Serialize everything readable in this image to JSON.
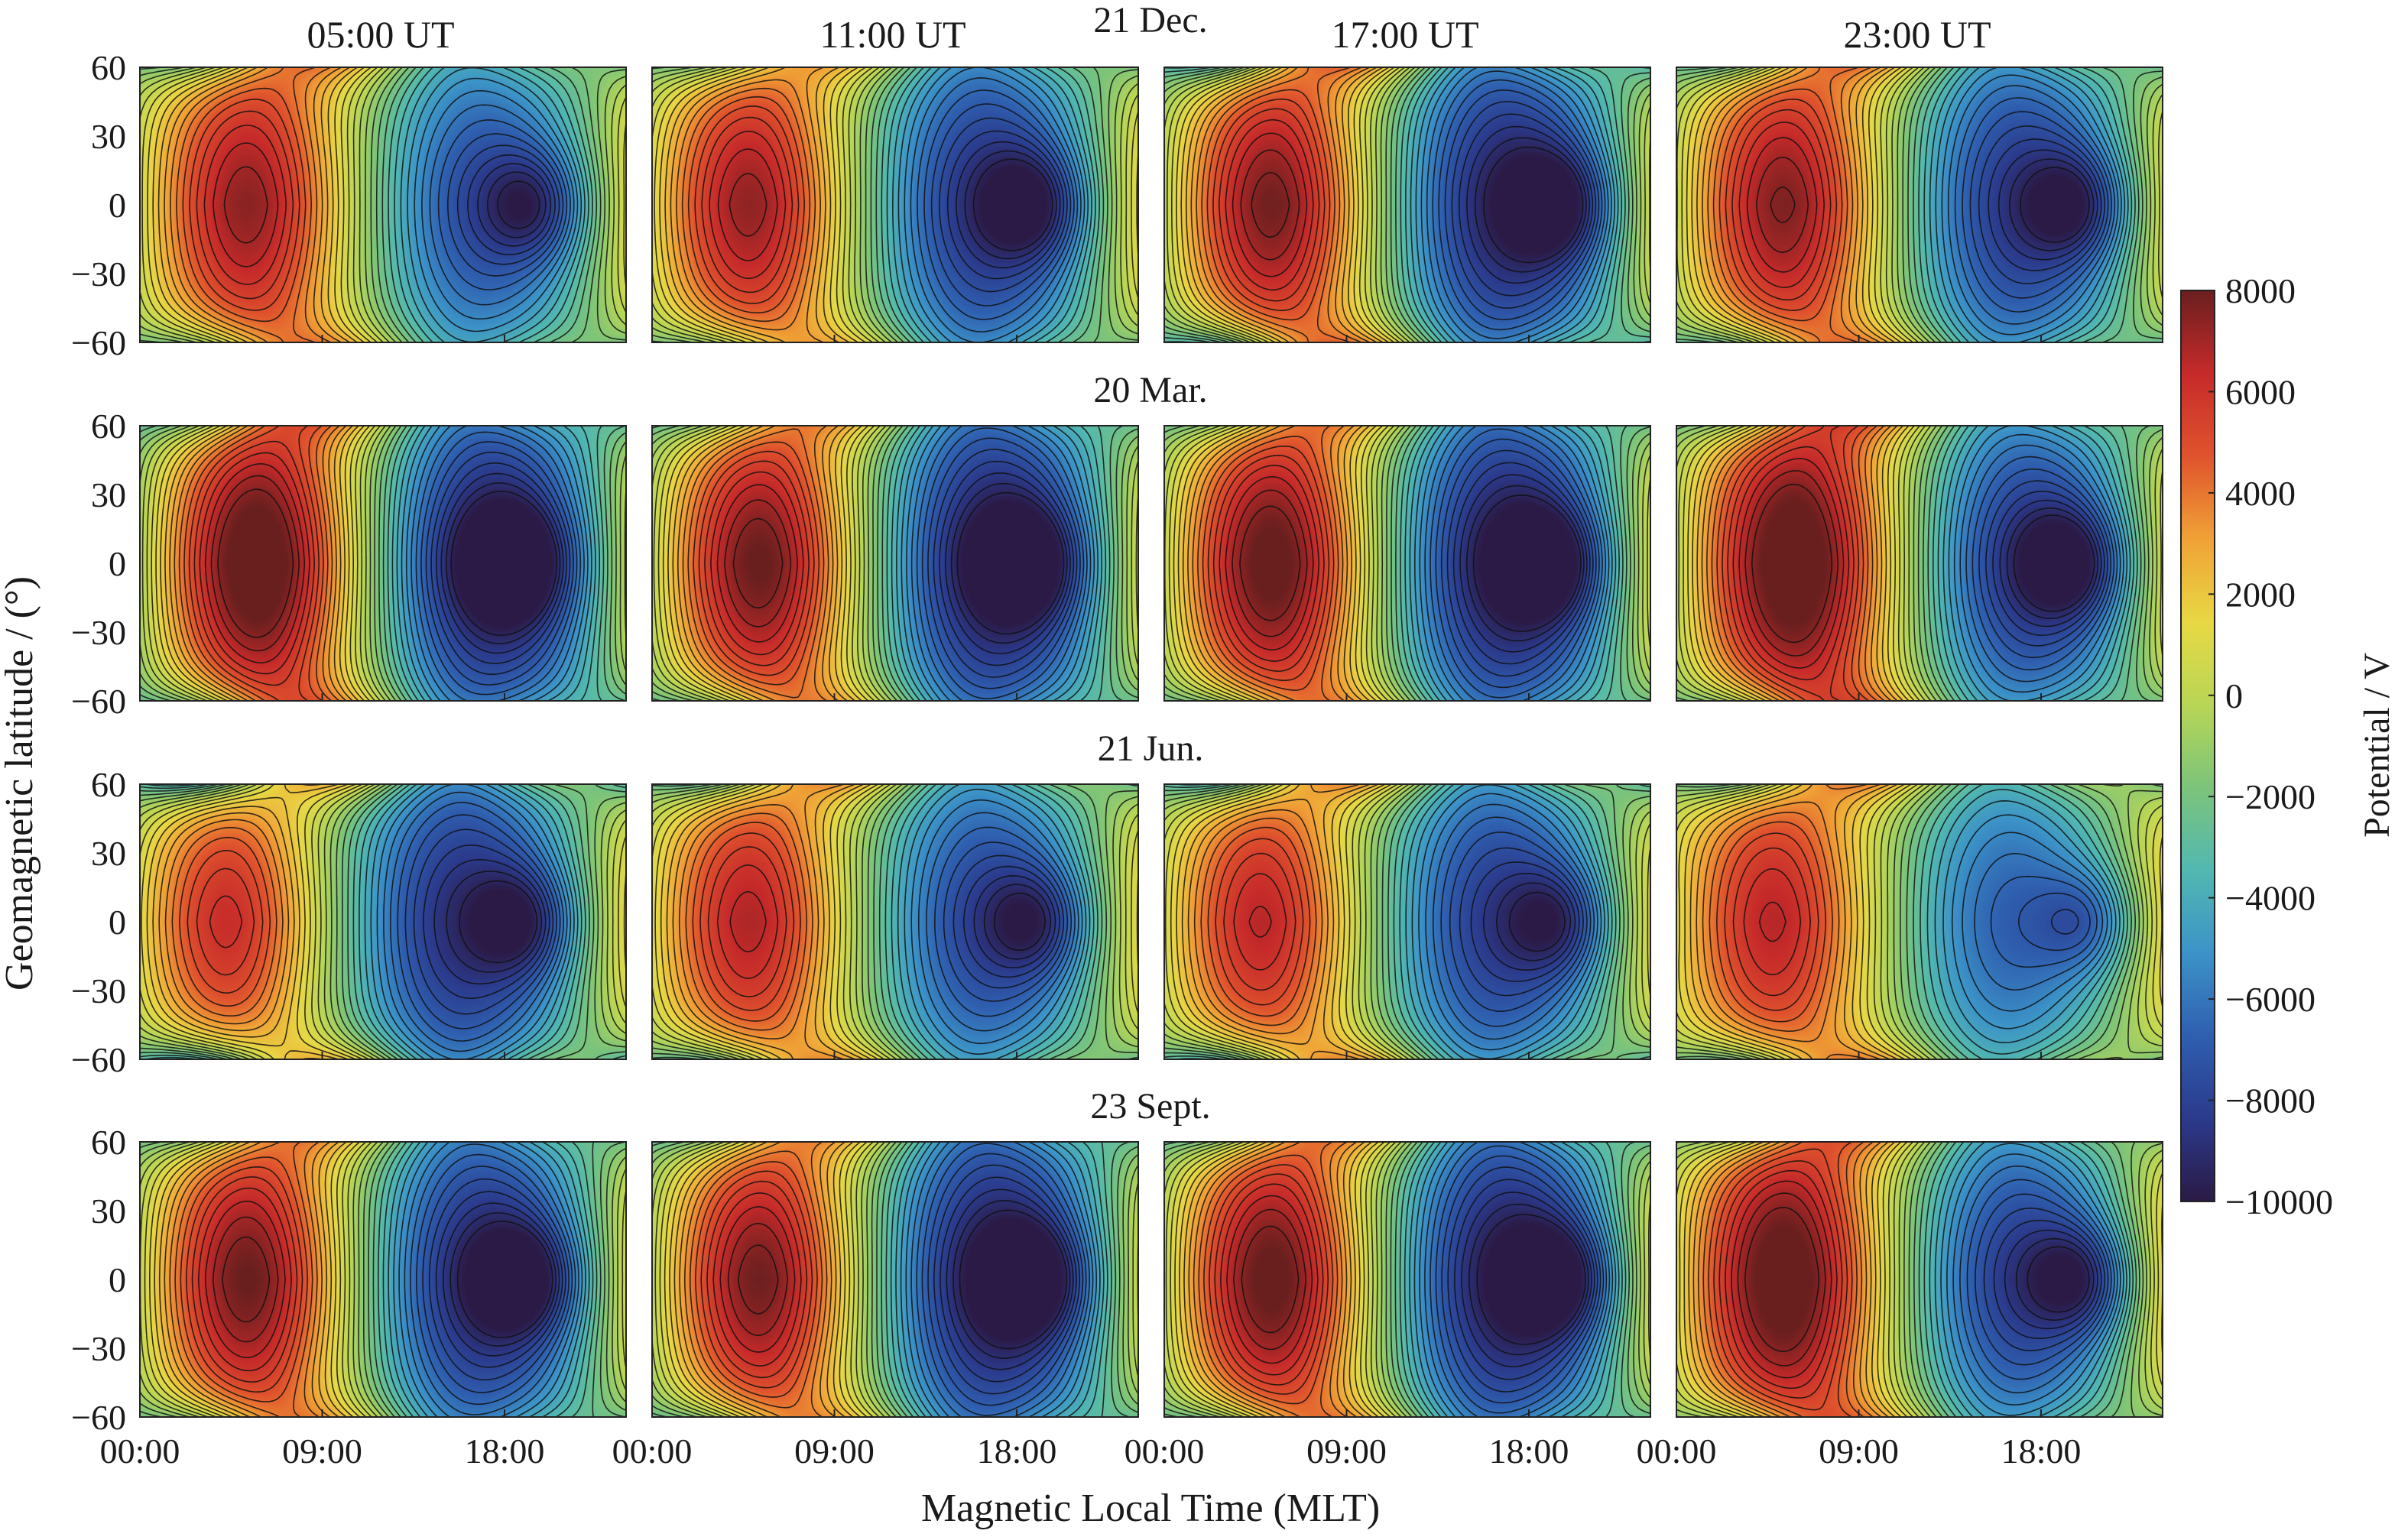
{
  "chart_data": {
    "type": "heatmap",
    "subtype": "contour-filled",
    "columns": [
      "05:00 UT",
      "11:00 UT",
      "17:00 UT",
      "23:00 UT"
    ],
    "rows": [
      "21 Dec.",
      "20 Mar.",
      "21 Jun.",
      "23 Sept."
    ],
    "xlabel": "Magnetic Local Time (MLT)",
    "ylabel": "Geomagnetic latitude / (°)",
    "x_ticks": [
      "00:00",
      "09:00",
      "18:00"
    ],
    "x_tick_hours": [
      0,
      9,
      18
    ],
    "xlim_hours": [
      0,
      24
    ],
    "y_ticks": [
      60,
      30,
      0,
      -30,
      -60
    ],
    "y_tick_labels": [
      "60",
      "30",
      "0",
      "−30",
      "−60"
    ],
    "ylim": [
      -60,
      60
    ],
    "colorbar": {
      "title": "Potential / V",
      "min": -10000,
      "max": 8000,
      "ticks": [
        8000,
        6000,
        4000,
        2000,
        0,
        -2000,
        -4000,
        -6000,
        -8000,
        -10000
      ],
      "tick_labels": [
        "8000",
        "6000",
        "4000",
        "2000",
        "0",
        "−2000",
        "−4000",
        "−6000",
        "−8000",
        "−10000"
      ],
      "colormap": [
        "#2b1a45",
        "#2b3a8c",
        "#2f5fb0",
        "#3c93c8",
        "#52b8b0",
        "#7cc47a",
        "#b8d656",
        "#e8d844",
        "#f0a236",
        "#e0532d",
        "#c62a2a",
        "#6a1f1f"
      ]
    },
    "panels": [
      {
        "row": "21 Dec.",
        "column": "05:00 UT",
        "max_center_mlt": 5.0,
        "min_center_mlt": 19.5,
        "min_value": -7500,
        "max_value": 5800,
        "high_lat_amp": 0.55
      },
      {
        "row": "21 Dec.",
        "column": "11:00 UT",
        "max_center_mlt": 4.5,
        "min_center_mlt": 18.8,
        "min_value": -8600,
        "max_value": 5600,
        "high_lat_amp": 0.55
      },
      {
        "row": "21 Dec.",
        "column": "17:00 UT",
        "max_center_mlt": 5.0,
        "min_center_mlt": 19.5,
        "min_value": -9400,
        "max_value": 6000,
        "high_lat_amp": 0.75
      },
      {
        "row": "21 Dec.",
        "column": "23:00 UT",
        "max_center_mlt": 5.0,
        "min_center_mlt": 19.8,
        "min_value": -8400,
        "max_value": 5900,
        "high_lat_amp": 0.65
      },
      {
        "row": "20 Mar.",
        "column": "05:00 UT",
        "max_center_mlt": 5.5,
        "min_center_mlt": 18.5,
        "min_value": -9800,
        "max_value": 7000,
        "high_lat_amp": 0.5
      },
      {
        "row": "20 Mar.",
        "column": "11:00 UT",
        "max_center_mlt": 5.0,
        "min_center_mlt": 18.5,
        "min_value": -9800,
        "max_value": 6200,
        "high_lat_amp": 0.5
      },
      {
        "row": "20 Mar.",
        "column": "17:00 UT",
        "max_center_mlt": 5.0,
        "min_center_mlt": 19.0,
        "min_value": -9800,
        "max_value": 6500,
        "high_lat_amp": 0.5
      },
      {
        "row": "20 Mar.",
        "column": "23:00 UT",
        "max_center_mlt": 5.5,
        "min_center_mlt": 19.5,
        "min_value": -8500,
        "max_value": 7200,
        "high_lat_amp": 0.5
      },
      {
        "row": "21 Jun.",
        "column": "05:00 UT",
        "max_center_mlt": 4.0,
        "min_center_mlt": 19.0,
        "min_value": -8800,
        "max_value": 4600,
        "high_lat_amp": 0.85
      },
      {
        "row": "21 Jun.",
        "column": "11:00 UT",
        "max_center_mlt": 4.5,
        "min_center_mlt": 19.0,
        "min_value": -7800,
        "max_value": 5200,
        "high_lat_amp": 0.7
      },
      {
        "row": "21 Jun.",
        "column": "17:00 UT",
        "max_center_mlt": 4.5,
        "min_center_mlt": 19.5,
        "min_value": -8200,
        "max_value": 5000,
        "high_lat_amp": 0.8
      },
      {
        "row": "21 Jun.",
        "column": "23:00 UT",
        "max_center_mlt": 4.5,
        "min_center_mlt": 20.5,
        "min_value": -6600,
        "max_value": 5200,
        "high_lat_amp": 0.7
      },
      {
        "row": "23 Sept.",
        "column": "05:00 UT",
        "max_center_mlt": 5.0,
        "min_center_mlt": 19.0,
        "min_value": -9200,
        "max_value": 6200,
        "high_lat_amp": 0.5
      },
      {
        "row": "23 Sept.",
        "column": "11:00 UT",
        "max_center_mlt": 5.0,
        "min_center_mlt": 18.8,
        "min_value": -9800,
        "max_value": 6000,
        "high_lat_amp": 0.5
      },
      {
        "row": "23 Sept.",
        "column": "17:00 UT",
        "max_center_mlt": 5.0,
        "min_center_mlt": 19.5,
        "min_value": -9800,
        "max_value": 6400,
        "high_lat_amp": 0.55
      },
      {
        "row": "23 Sept.",
        "column": "23:00 UT",
        "max_center_mlt": 5.0,
        "min_center_mlt": 20.0,
        "min_value": -8200,
        "max_value": 7000,
        "high_lat_amp": 0.5
      }
    ]
  }
}
